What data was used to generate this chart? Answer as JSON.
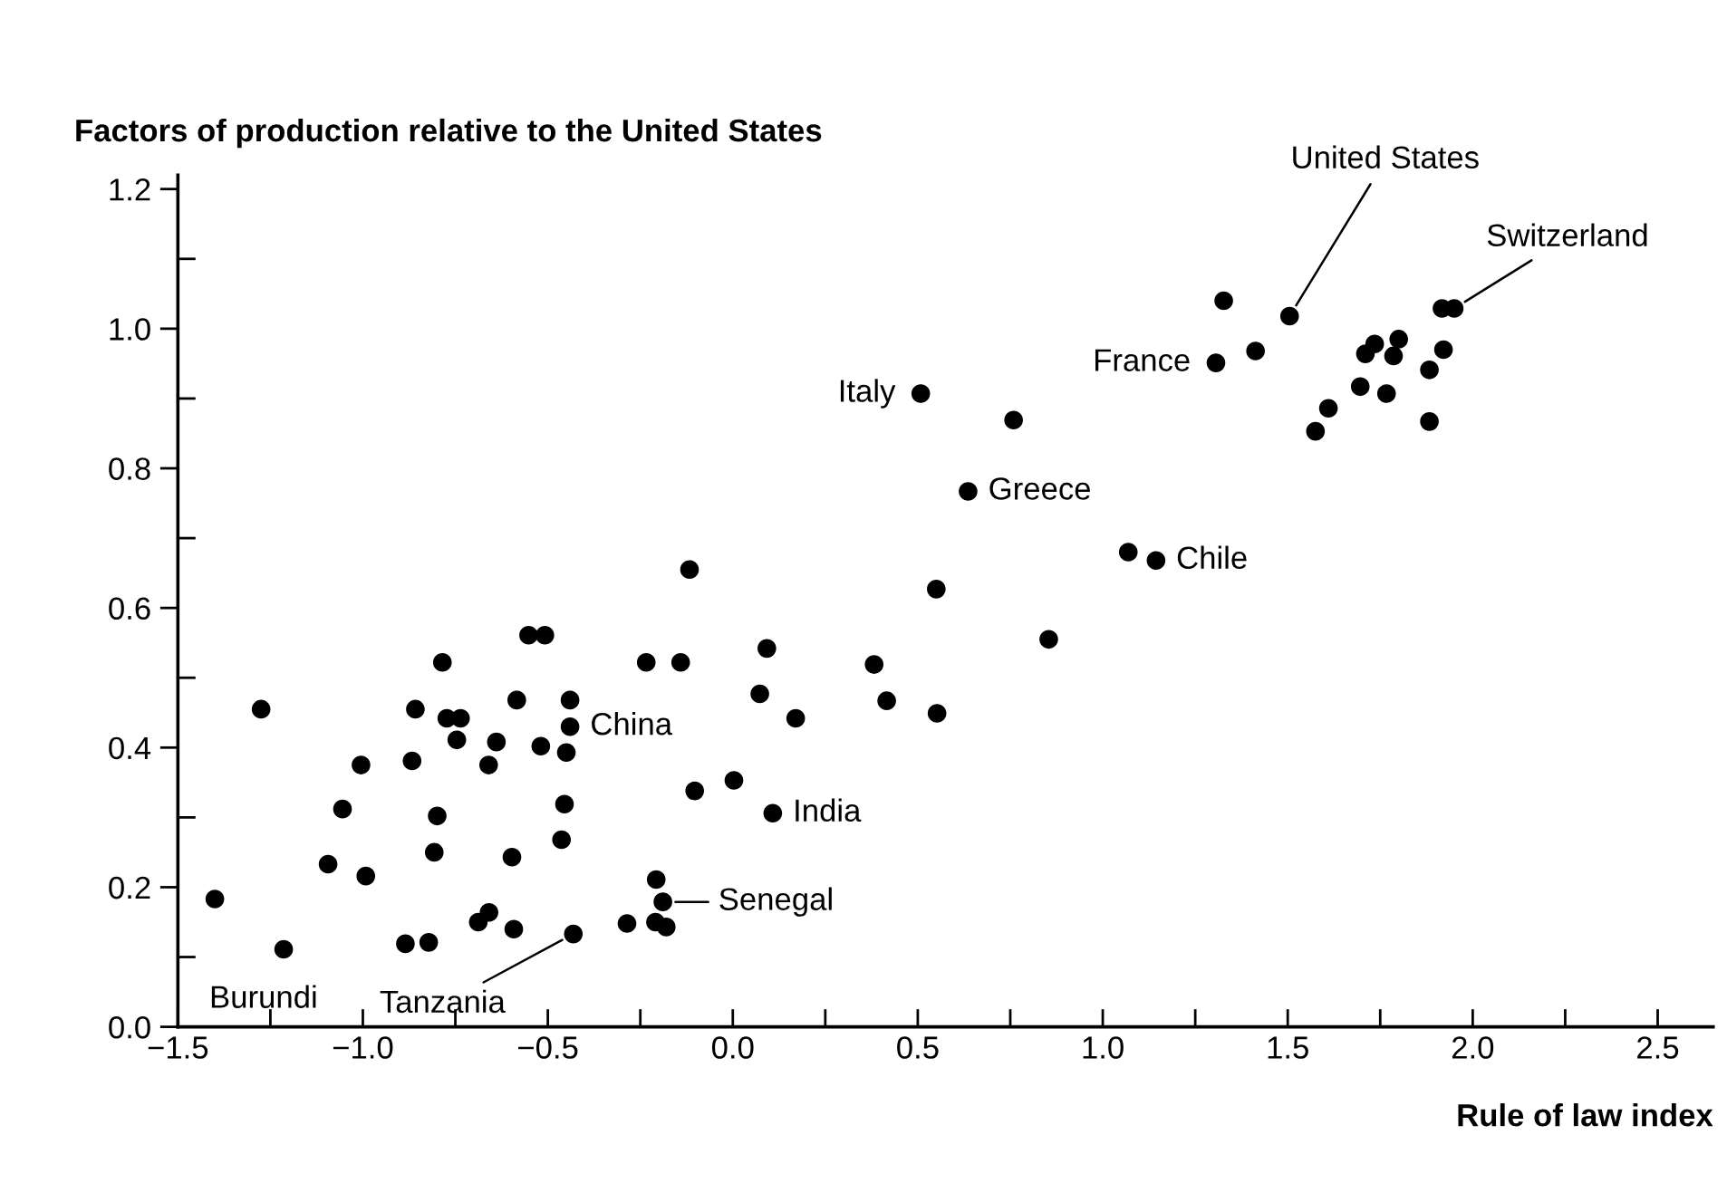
{
  "chart_data": {
    "type": "scatter",
    "ylabel": "Factors of production relative to the United States",
    "xlabel": "Rule of law index",
    "x": [
      -1.4,
      -1.275,
      -1.214,
      -1.094,
      -1.055,
      -1.005,
      -0.992,
      -0.885,
      -0.867,
      -0.858,
      -0.822,
      -0.807,
      -0.799,
      -0.785,
      -0.773,
      -0.736,
      -0.746,
      -0.688,
      -0.659,
      -0.66,
      -0.639,
      -0.597,
      -0.592,
      -0.584,
      -0.552,
      -0.508,
      -0.519,
      -0.463,
      -0.455,
      -0.45,
      -0.44,
      -0.44,
      -0.431,
      -0.286,
      -0.234,
      -0.207,
      -0.189,
      -0.209,
      -0.18,
      -0.141,
      -0.117,
      -0.103,
      0.003,
      0.073,
      0.092,
      0.17,
      0.108,
      0.382,
      0.416,
      0.55,
      0.552,
      0.854,
      1.069,
      1.144,
      0.508,
      0.759,
      0.636,
      1.327,
      1.505,
      1.306,
      1.413,
      1.917,
      1.95,
      1.71,
      1.735,
      1.8,
      1.786,
      1.921,
      1.883,
      1.696,
      1.767,
      1.883,
      1.61,
      1.575
    ],
    "values": [
      0.183,
      0.455,
      0.111,
      0.233,
      0.312,
      0.375,
      0.216,
      0.119,
      0.381,
      0.455,
      0.121,
      0.25,
      0.302,
      0.522,
      0.442,
      0.442,
      0.411,
      0.15,
      0.164,
      0.375,
      0.408,
      0.243,
      0.14,
      0.468,
      0.561,
      0.561,
      0.402,
      0.268,
      0.319,
      0.393,
      0.43,
      0.468,
      0.133,
      0.148,
      0.522,
      0.211,
      0.179,
      0.15,
      0.143,
      0.522,
      0.655,
      0.338,
      0.353,
      0.477,
      0.542,
      0.442,
      0.306,
      0.519,
      0.467,
      0.627,
      0.449,
      0.555,
      0.68,
      0.668,
      0.907,
      0.869,
      0.767,
      1.04,
      1.018,
      0.951,
      0.968,
      1.029,
      1.029,
      0.964,
      0.978,
      0.985,
      0.961,
      0.97,
      0.941,
      0.917,
      0.907,
      0.867,
      0.886,
      0.853
    ],
    "color": "#000000",
    "marker": "circle",
    "grid": false,
    "legend": false,
    "xlim": [
      -1.5,
      2.65
    ],
    "ylim": [
      0,
      1.22
    ],
    "xticks": [
      {
        "value": -1.5,
        "label": "−1.5"
      },
      {
        "value": -1.25,
        "label": null
      },
      {
        "value": -1.0,
        "label": "−1.0"
      },
      {
        "value": -0.75,
        "label": null
      },
      {
        "value": -0.5,
        "label": "−0.5"
      },
      {
        "value": -0.25,
        "label": null
      },
      {
        "value": 0,
        "label": "0.0"
      },
      {
        "value": 0.25,
        "label": null
      },
      {
        "value": 0.5,
        "label": "0.5"
      },
      {
        "value": 0.75,
        "label": null
      },
      {
        "value": 1.0,
        "label": "1.0"
      },
      {
        "value": 1.25,
        "label": null
      },
      {
        "value": 1.5,
        "label": "1.5"
      },
      {
        "value": 1.75,
        "label": null
      },
      {
        "value": 2.0,
        "label": "2.0"
      },
      {
        "value": 2.25,
        "label": null
      },
      {
        "value": 2.5,
        "label": "2.5"
      }
    ],
    "yticks": [
      {
        "value": 0,
        "label": "0.0"
      },
      {
        "value": 0.1,
        "label": null
      },
      {
        "value": 0.2,
        "label": "0.2"
      },
      {
        "value": 0.3,
        "label": null
      },
      {
        "value": 0.4,
        "label": "0.4"
      },
      {
        "value": 0.5,
        "label": null
      },
      {
        "value": 0.6,
        "label": "0.6"
      },
      {
        "value": 0.7,
        "label": null
      },
      {
        "value": 0.8,
        "label": "0.8"
      },
      {
        "value": 0.9,
        "label": null
      },
      {
        "value": 1.0,
        "label": "1.0"
      },
      {
        "value": 1.1,
        "label": null
      },
      {
        "value": 1.2,
        "label": "1.2"
      }
    ],
    "annotations": [
      {
        "text": "United States",
        "x": 1.505,
        "y": 1.018
      },
      {
        "text": "Switzerland",
        "x": 1.95,
        "y": 1.029
      },
      {
        "text": "France",
        "x": 1.306,
        "y": 0.951
      },
      {
        "text": "Italy",
        "x": 0.508,
        "y": 0.907
      },
      {
        "text": "Greece",
        "x": 0.636,
        "y": 0.767
      },
      {
        "text": "Chile",
        "x": 1.144,
        "y": 0.668
      },
      {
        "text": "China",
        "x": -0.44,
        "y": 0.43
      },
      {
        "text": "India",
        "x": 0.108,
        "y": 0.306
      },
      {
        "text": "Senegal",
        "x": -0.189,
        "y": 0.179
      },
      {
        "text": "Tanzania",
        "x": -0.431,
        "y": 0.133
      },
      {
        "text": "Burundi",
        "x": -1.214,
        "y": 0.111
      }
    ]
  }
}
